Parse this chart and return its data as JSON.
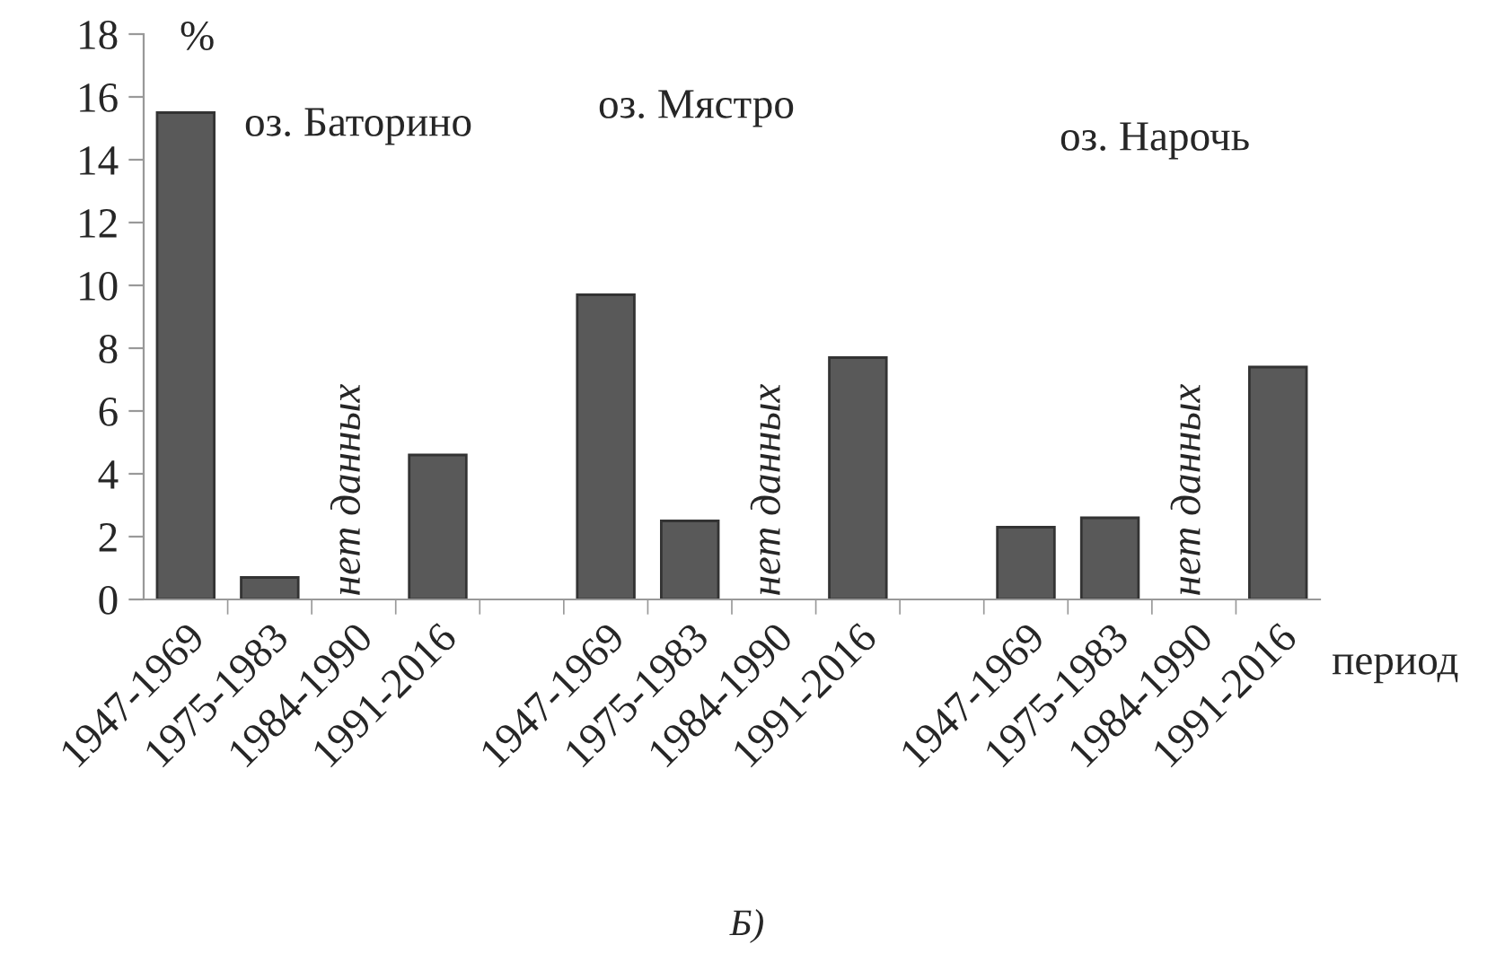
{
  "chart_data": {
    "type": "bar",
    "categories": [
      "1947-1969",
      "1975-1983",
      "1984-1990",
      "1991-2016",
      null,
      "1947-1969",
      "1975-1983",
      "1984-1990",
      "1991-2016",
      null,
      "1947-1969",
      "1975-1983",
      "1984-1990",
      "1991-2016"
    ],
    "values": [
      15.5,
      0.7,
      null,
      4.6,
      null,
      9.7,
      2.5,
      null,
      7.7,
      null,
      2.3,
      2.6,
      null,
      7.4
    ],
    "color": "#595959",
    "xlabel": "период",
    "ylim": [
      0,
      18
    ],
    "yticks": [
      0,
      2,
      4,
      6,
      8,
      10,
      12,
      14,
      16,
      18
    ],
    "grid": false,
    "legend": false,
    "annotations": [
      "%",
      "оз. Баторино",
      "оз. Мястро",
      "оз. Нарочь",
      "нет данных",
      "нет данных",
      "нет данных",
      "Б)"
    ]
  }
}
